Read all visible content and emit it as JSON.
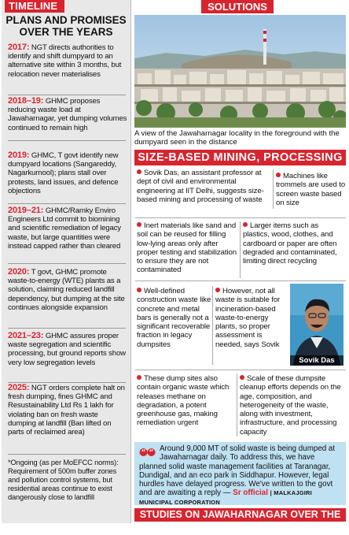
{
  "timeline": {
    "header": "TIMELINE",
    "title_line1": "PLANS AND PROMISES",
    "title_line2": "OVER THE YEARS",
    "entries": [
      {
        "year": "2017:",
        "text": "NGT directs authorities to identify and shift dumpyard to an alternative site within 3 months, but relocation never materialises"
      },
      {
        "year": "2018–19:",
        "text": "GHMC proposes reducing waste load at Jawaharnagar, yet dumping volumes continued to remain high"
      },
      {
        "year": "2019:",
        "text": "GHMC, T govt identify new dumpyard locations (Sangareddy, Nagarkurnool); plans stall over protests, land issues, and defence objections"
      },
      {
        "year": "2019–21:",
        "text": "GHMC/Ramky Enviro Engineers Ltd commit to biomining and scientific remediation of legacy waste, but large quantities were instead capped rather than cleared"
      },
      {
        "year": "2020:",
        "text": "T govt, GHMC promote waste-to-energy (WTE) plants as a solution, claiming reduced landfill dependency, but dumping at the site continues alongside expansion"
      },
      {
        "year": "2021–23:",
        "text": "GHMC assures proper waste segregation and scientific processing, but ground reports show very low segregation levels"
      },
      {
        "year": "2025:",
        "text": "NGT orders complete halt on fresh dumping, fines GHMC and Resustainability Ltd Rs 1 lakh for violating ban on fresh waste dumping at landfill (Ban lifted on parts of reclaimed area)"
      }
    ],
    "note": "*Ongoing (as per MoEFCC norms): Requirement of 500m buffer zones and pollution control systems, but residential areas continue to exist dangerously close to landfill"
  },
  "solutions": {
    "header": "SOLUTIONS",
    "photo_caption": "A view of the Jawaharnagar locality in the foreground with the dumpyard seen in the distance",
    "section_header": "SIZE-BASED MINING, PROCESSING",
    "points": {
      "p1": "Sovik Das, an assistant professor at dept of civil and environmental engineering at IIT Delhi, suggests size-based mining and processing of waste",
      "p2": "Machines like trommels are used to screen waste based on size",
      "p3": "Inert materials like sand and soil can be reused for filling low-lying areas only after proper testing and stabilization to ensure they are not contaminated",
      "p4": "Larger items such as plastics, wood, clothes, and cardboard or paper are often degraded and contaminated, limiting direct recycling",
      "p5": "Well-defined construction waste like concrete and metal bars is generally not a significant recoverable fraction in legacy dumpsites",
      "p6": "However, not all waste is suitable for incineration-based waste-to-energy plants, so proper assessment is needed, says Sovik",
      "p7": "These dump sites also contain organic waste which releases methane on degradation, a potent greenhouse gas, making remediation urgent",
      "p8": "Scale of these dumpsite cleanup efforts depends on the age, composition, and heterogeneity of the waste, along with investment, infrastructure, and processing capacity"
    },
    "portrait_label": "Sovik Das",
    "quote": {
      "text": "Around 9,000 MT of solid waste is being dumped at Jawaharnagar daily. To address this, we have planned solid waste management facilities at Taranagar, Dundigal, and an eco park in Siddhapur. However, legal hurdles have delayed progress. We've written to the govt and are awaiting a reply —",
      "attribution": "Sr official",
      "organisation": "MALKAJGIRI MUNICIPAL CORPORATION"
    },
    "footer": "STUDIES ON JAWAHARNAGAR OVER THE YEARS"
  },
  "colors": {
    "accent": "#d7242f",
    "timeline_bg": "#e8e8e8",
    "quote_bg": "#bfe1f2"
  }
}
